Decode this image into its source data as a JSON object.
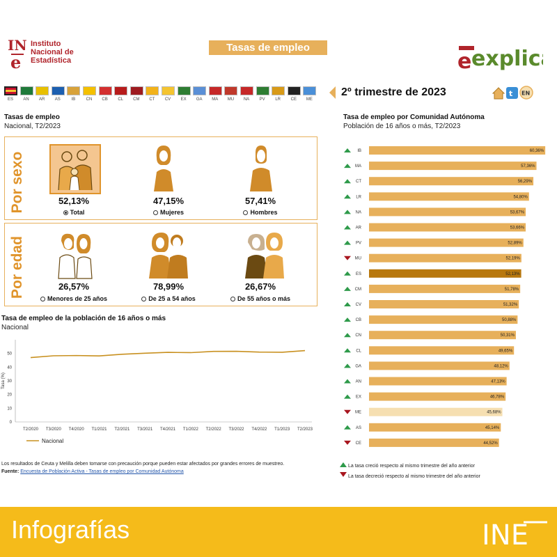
{
  "header": {
    "org_mark": "INE",
    "org_name_lines": [
      "Instituto",
      "Nacional de",
      "Estadística"
    ],
    "page_title": "Tasas de empleo",
    "brand": "explica",
    "period_label": "2º trimestre de 2023",
    "lang_button": "EN"
  },
  "regions_bar": [
    {
      "code": "ES",
      "color": "#c8102e"
    },
    {
      "code": "AN",
      "color": "#1f7a3a"
    },
    {
      "code": "AR",
      "color": "#e8c000"
    },
    {
      "code": "AS",
      "color": "#1c5fb0"
    },
    {
      "code": "IB",
      "color": "#d8a23a"
    },
    {
      "code": "CN",
      "color": "#f4c000"
    },
    {
      "code": "CB",
      "color": "#d32f2f"
    },
    {
      "code": "CL",
      "color": "#b71c1c"
    },
    {
      "code": "CM",
      "color": "#9e1b20"
    },
    {
      "code": "CT",
      "color": "#f2b21a"
    },
    {
      "code": "CV",
      "color": "#f4c430"
    },
    {
      "code": "EX",
      "color": "#2e7d32"
    },
    {
      "code": "GA",
      "color": "#5a8fd6"
    },
    {
      "code": "MA",
      "color": "#c62828"
    },
    {
      "code": "MU",
      "color": "#c0392b"
    },
    {
      "code": "NA",
      "color": "#c62828"
    },
    {
      "code": "PV",
      "color": "#2e7d32"
    },
    {
      "code": "LR",
      "color": "#d89a18"
    },
    {
      "code": "CE",
      "color": "#222222"
    },
    {
      "code": "ME",
      "color": "#4a8fd8"
    }
  ],
  "left": {
    "title": "Tasas de empleo",
    "subtitle": "Nacional, T2/2023",
    "sex_heading": "Por sexo",
    "age_heading": "Por edad",
    "sex": [
      {
        "value": "52,13%",
        "label": "Total",
        "selected": true
      },
      {
        "value": "47,15%",
        "label": "Mujeres",
        "selected": false
      },
      {
        "value": "57,41%",
        "label": "Hombres",
        "selected": false
      }
    ],
    "age": [
      {
        "value": "26,57%",
        "label": "Menores de 25 años",
        "selected": false
      },
      {
        "value": "78,99%",
        "label": "De 25 a 54 años",
        "selected": false
      },
      {
        "value": "26,67%",
        "label": "De 55 años o más",
        "selected": false
      }
    ]
  },
  "notes": {
    "caution": "Los resultados de Ceuta y Melilla deben tomarse con precaución porque pueden estar afectados por grandes errores de muestreo.",
    "source_label": "Fuente:",
    "source_link": "Encuesta de Población Activa - Tasas de empleo por Comunidad Autónoma"
  },
  "legend_arrows": {
    "up": "La tasa creció respecto al mismo trimestre del año anterior",
    "down": "La tasa decreció respecto al mismo trimestre del año anterior"
  },
  "footer": {
    "text": "Infografías",
    "logo": "INE"
  },
  "colors": {
    "accent": "#e7b05b",
    "bar": "#e7b05b",
    "bar_es": "#b8780e",
    "bar_me": "#f6dfb1",
    "line": "#c8901f",
    "up": "#2e9a4a",
    "down": "#a8161f"
  },
  "chart_data": [
    {
      "type": "line",
      "title": "Tasa de empleo de la población de 16 años o más",
      "subtitle": "Nacional",
      "ylabel": "Tasa (%)",
      "xlabel": "",
      "ylim": [
        0,
        60
      ],
      "yticks": [
        0,
        10,
        20,
        30,
        40,
        50
      ],
      "x": [
        "T2/2020",
        "T3/2020",
        "T4/2020",
        "T1/2021",
        "T2/2021",
        "T3/2021",
        "T4/2021",
        "T1/2022",
        "T2/2022",
        "T3/2022",
        "T4/2022",
        "T1/2023",
        "T2/2023"
      ],
      "series": [
        {
          "name": "Nacional",
          "values": [
            47.0,
            48.3,
            48.5,
            48.2,
            49.4,
            50.2,
            50.8,
            50.6,
            51.5,
            51.6,
            51.0,
            50.9,
            52.1
          ]
        }
      ],
      "legend": "bottom-left"
    },
    {
      "type": "bar",
      "orientation": "horizontal",
      "title": "Tasa de empleo por Comunidad Autónoma",
      "subtitle": "Población de 16 años o más, T2/2023",
      "categories": [
        "IB",
        "MA",
        "CT",
        "LR",
        "NA",
        "AR",
        "PV",
        "MU",
        "ES",
        "CM",
        "CV",
        "CB",
        "CN",
        "CL",
        "GA",
        "AN",
        "EX",
        "ME",
        "AS",
        "CE"
      ],
      "values": [
        60.36,
        57.36,
        56.29,
        54.8,
        53.67,
        53.66,
        52.89,
        52.19,
        52.13,
        51.78,
        51.32,
        50.88,
        50.31,
        49.65,
        48.12,
        47.13,
        46.78,
        45.68,
        45.14,
        44.52
      ],
      "labels": [
        "60,36%",
        "57,36%",
        "56,29%",
        "54,80%",
        "53,67%",
        "53,66%",
        "52,89%",
        "52,19%",
        "52,13%",
        "51,78%",
        "51,32%",
        "50,88%",
        "50,31%",
        "49,65%",
        "48,12%",
        "47,13%",
        "46,78%",
        "45,68%",
        "45,14%",
        "44,52%"
      ],
      "trend": [
        "up",
        "up",
        "up",
        "up",
        "up",
        "up",
        "up",
        "down",
        "up",
        "up",
        "up",
        "up",
        "up",
        "up",
        "up",
        "up",
        "up",
        "down",
        "up",
        "down"
      ],
      "xlim": [
        0,
        62
      ]
    }
  ]
}
